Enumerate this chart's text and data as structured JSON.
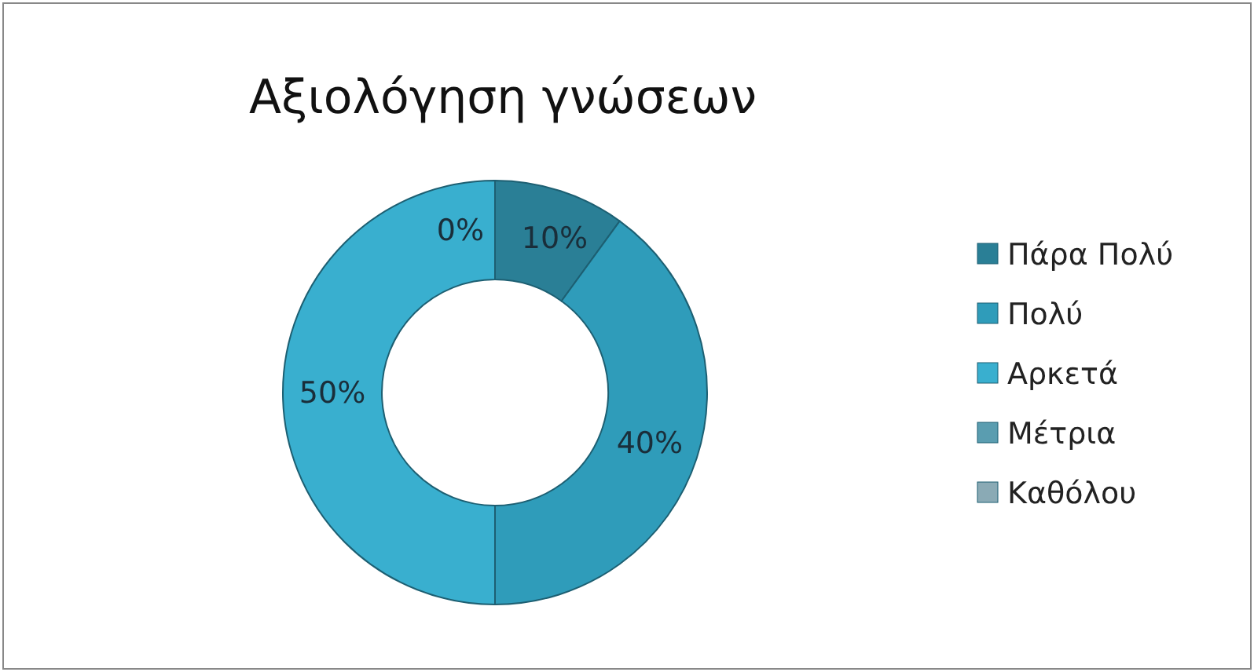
{
  "chart_data": {
    "type": "donut",
    "title": "Αξιολόγηση γνώσεων",
    "categories": [
      "Πάρα Πολύ",
      "Πολύ",
      "Αρκετά",
      "Μέτρια",
      "Καθόλου"
    ],
    "values": [
      10,
      40,
      50,
      0,
      0
    ],
    "colors": [
      "#2a7f96",
      "#2f9cba",
      "#39afcf",
      "#5a9db0",
      "#8aaab5"
    ],
    "value_labels": [
      "10%",
      "40%",
      "50%",
      "0%",
      null
    ],
    "legend": "right"
  }
}
